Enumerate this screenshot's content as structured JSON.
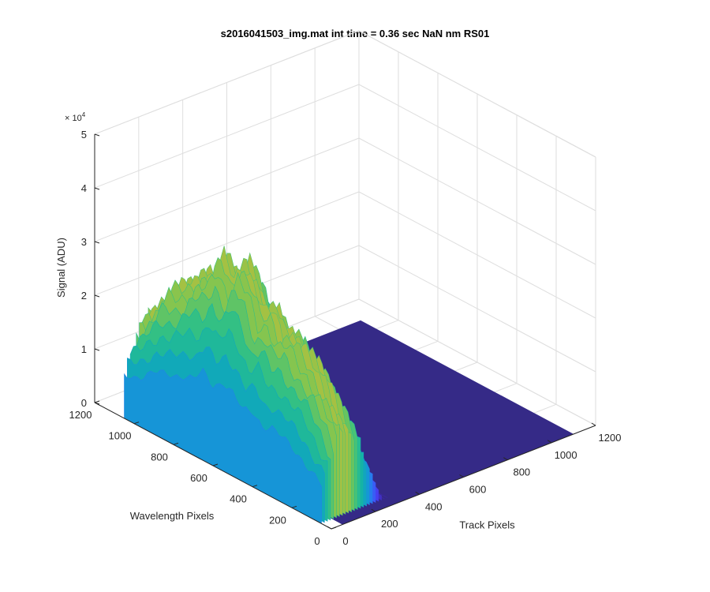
{
  "chart_data": {
    "type": "surface3d",
    "title": "s2016041503_img.mat int time = 0.36 sec  NaN nm RS01",
    "xlabel": "Track Pixels",
    "ylabel": "Wavelength Pixels",
    "zlabel": "Signal (ADU)",
    "z_exponent_label": "× 10",
    "z_exponent_power": "4",
    "xlim": [
      0,
      1200
    ],
    "ylim": [
      0,
      1200
    ],
    "zlim": [
      0,
      50000
    ],
    "xticks": [
      "0",
      "200",
      "400",
      "600",
      "800",
      "1000",
      "1200"
    ],
    "yticks": [
      "0",
      "200",
      "400",
      "600",
      "800",
      "1000",
      "1200"
    ],
    "zticks": [
      "0",
      "1",
      "2",
      "3",
      "4",
      "5"
    ],
    "grid": true,
    "colormap": [
      "#3e26a8",
      "#4743f8",
      "#2b76f2",
      "#1597d5",
      "#0fb1ac",
      "#31c085",
      "#7bc653",
      "#c0bd38",
      "#f9c537",
      "#f9fb15"
    ],
    "floor_color": "#352a87",
    "illuminated_region": {
      "track_pixels": [
        0,
        300
      ],
      "wavelength_pixels": [
        50,
        1050
      ],
      "peak_signal": 43000
    },
    "profile": {
      "wavelength_pixels": [
        50,
        100,
        150,
        200,
        250,
        300,
        350,
        400,
        450,
        500,
        550,
        600,
        650,
        700,
        750,
        800,
        850,
        900,
        950,
        1000,
        1050
      ],
      "peak_signal": [
        18000,
        22000,
        26000,
        29000,
        31000,
        33000,
        32000,
        36000,
        34000,
        40000,
        43000,
        38000,
        42000,
        37000,
        36000,
        33000,
        31000,
        30000,
        26000,
        22000,
        20000
      ]
    }
  }
}
